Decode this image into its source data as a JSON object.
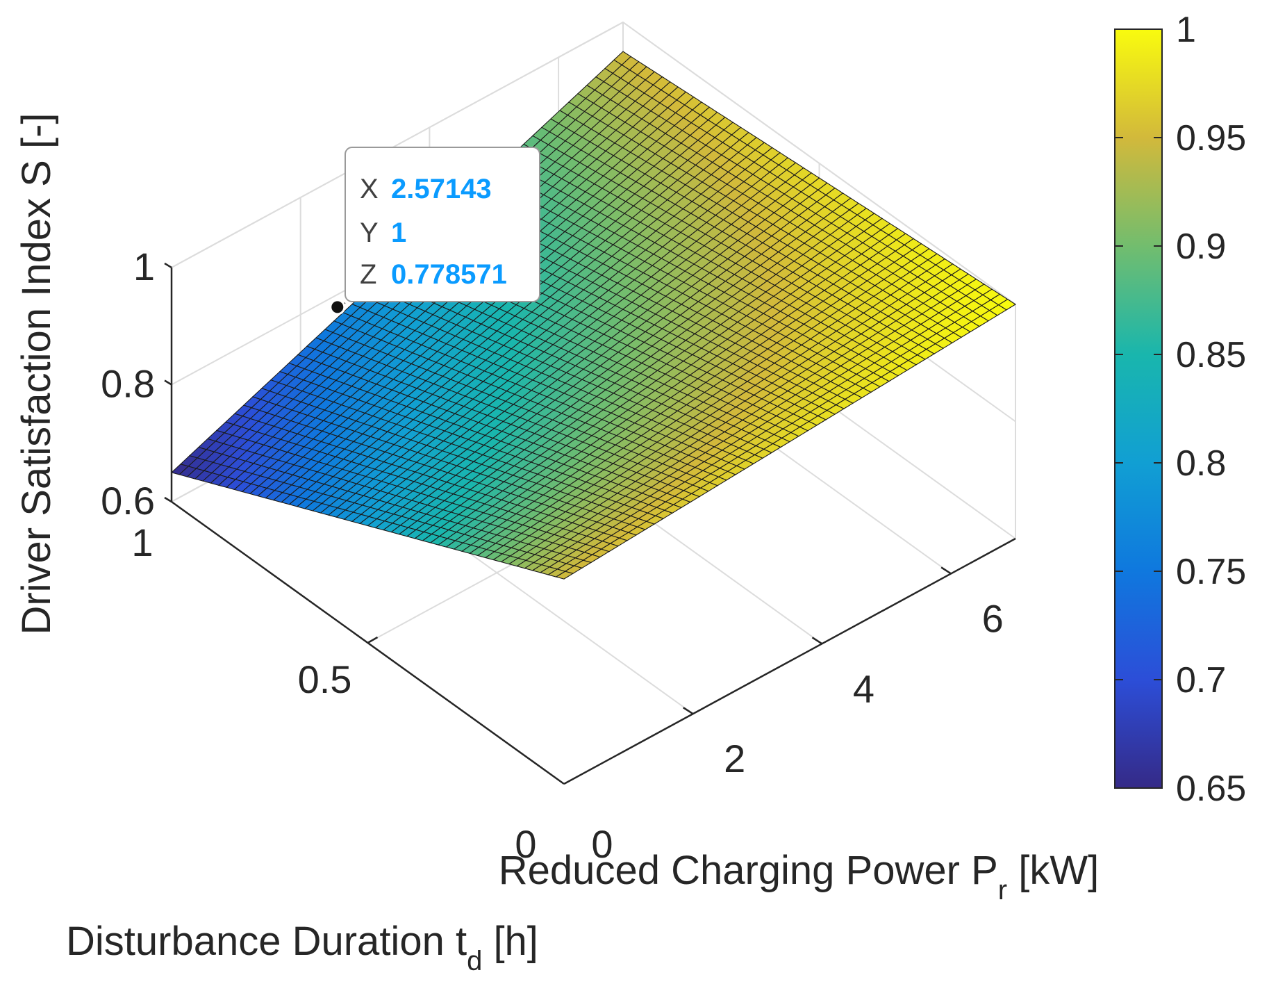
{
  "chart_data": {
    "type": "surface",
    "x_name": "Reduced Charging Power",
    "x_symbol": "P",
    "x_subscript": "r",
    "x_unit": "[kW]",
    "y_name": "Disturbance Duration t",
    "y_subscript": "d",
    "y_unit": "[h]",
    "zlabel": "Driver Satisfaction Index S [-]",
    "xlim": [
      0,
      7
    ],
    "ylim": [
      0,
      1
    ],
    "zlim": [
      0.6,
      1
    ],
    "x_ticks": [
      0,
      2,
      4,
      6
    ],
    "x_tick_labels": [
      "0",
      "2",
      "4",
      "6"
    ],
    "y_ticks": [
      0,
      0.5,
      1
    ],
    "y_tick_labels": [
      "0",
      "0.5",
      "1"
    ],
    "z_ticks": [
      0.6,
      0.8,
      1
    ],
    "z_tick_labels": [
      "0.6",
      "0.8",
      "1"
    ],
    "surface_corners": {
      "x0_y0": 0.95,
      "x7_y0": 1.0,
      "x0_y1": 0.65,
      "x7_y1": 0.95
    },
    "mesh_divisions": [
      50,
      50
    ],
    "grid": true,
    "colormap": "parula",
    "colorbar": {
      "clim": [
        0.65,
        1
      ],
      "ticks": [
        "1",
        "0.95",
        "0.9",
        "0.85",
        "0.8",
        "0.75",
        "0.7",
        "0.65"
      ]
    },
    "datatip": {
      "x_key": "X",
      "x_value": "2.57143",
      "y_key": "Y",
      "y_value": "1",
      "z_key": "Z",
      "z_value": "0.778571",
      "value_color": "#0a9bff"
    }
  }
}
